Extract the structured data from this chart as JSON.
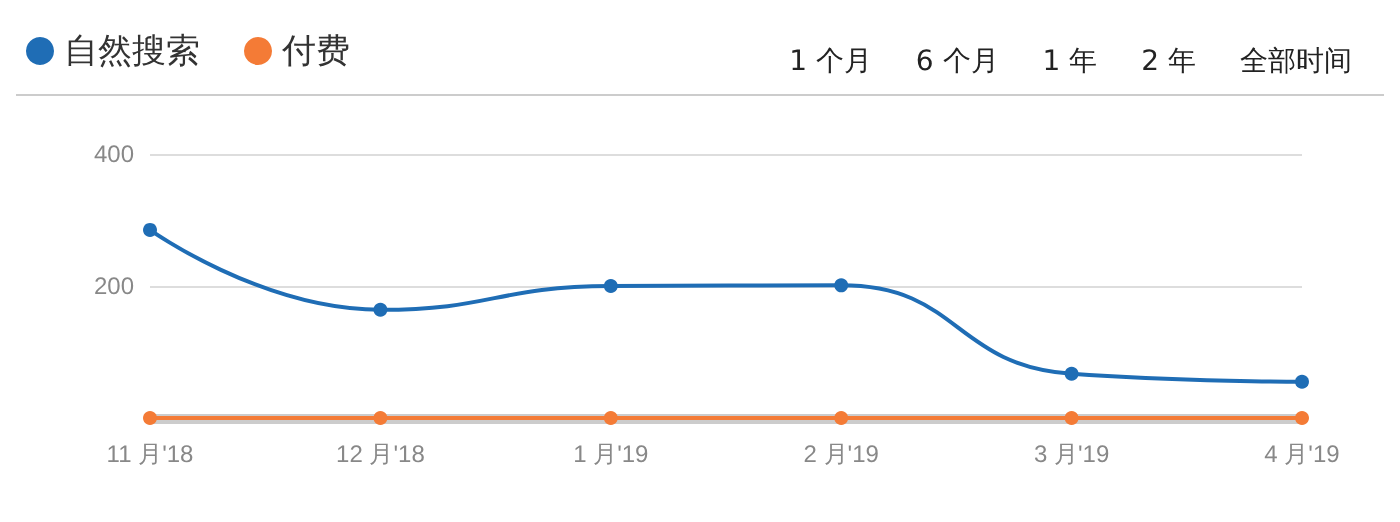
{
  "chart_data": {
    "type": "line",
    "categories": [
      "11 月'18",
      "12 月'18",
      "1 月'19",
      "2 月'19",
      "3 月'19",
      "4 月'19"
    ],
    "series": [
      {
        "name": "自然搜索",
        "color": "#1f6db5",
        "values": [
          285,
          164,
          200,
          201,
          67,
          55
        ]
      },
      {
        "name": "付费",
        "color": "#f47b36",
        "values": [
          0,
          0,
          0,
          0,
          0,
          0
        ]
      }
    ],
    "ylim": [
      0,
      400
    ],
    "yticks": [
      {
        "value": 0,
        "label": null
      },
      200,
      400
    ],
    "grid": "y",
    "legend": "top left",
    "marker": "circle",
    "line_style": "solid",
    "annotations": [
      "1 个月",
      "6 个月",
      "1 年",
      "2 年",
      "全部时间"
    ]
  }
}
